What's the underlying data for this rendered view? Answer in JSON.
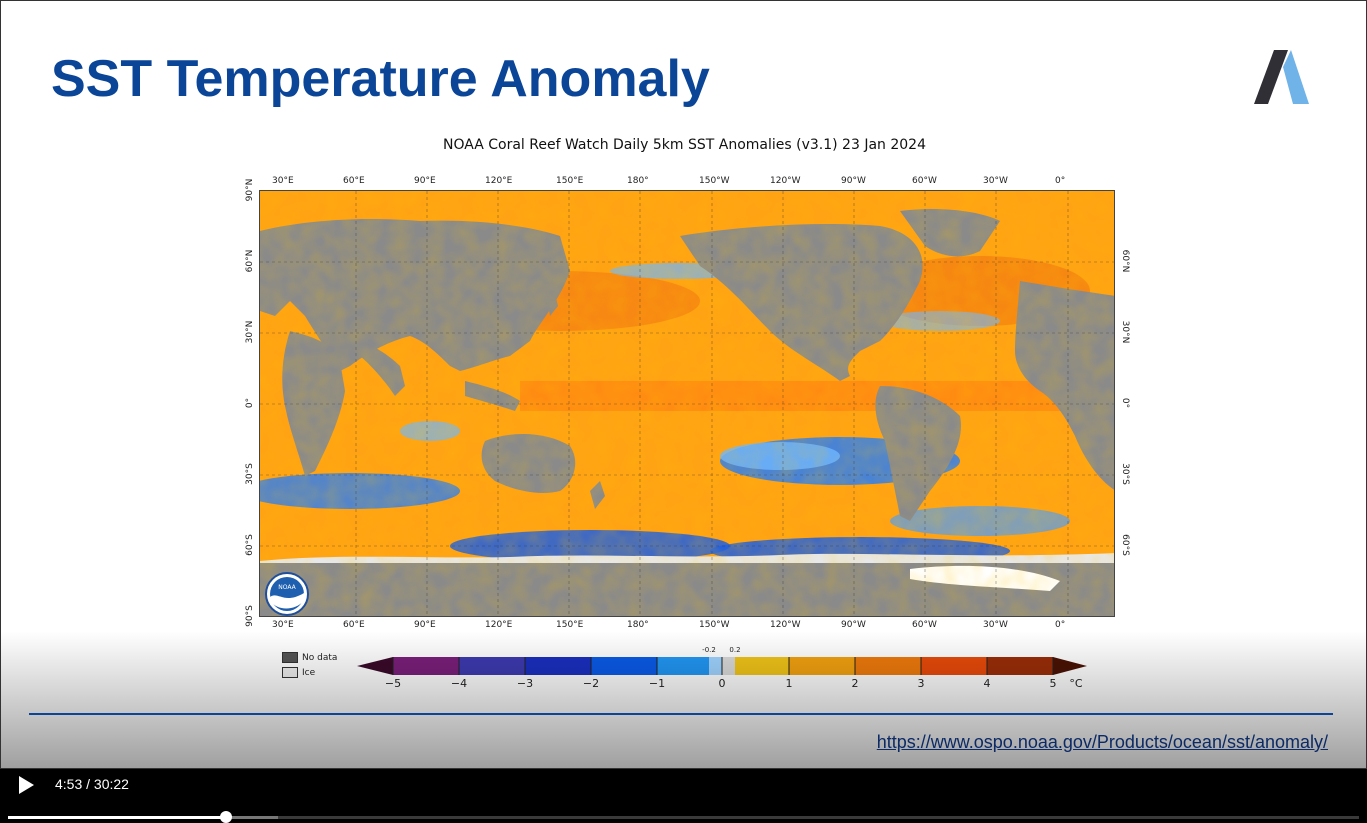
{
  "slide": {
    "title": "SST Temperature Anomaly",
    "source_url": "https://www.ospo.noaa.gov/Products/ocean/sst/anomaly/"
  },
  "figure": {
    "title": "NOAA Coral Reef Watch Daily 5km SST Anomalies  (v3.1)    23 Jan 2024",
    "lon_ticks": [
      "30°E",
      "60°E",
      "90°E",
      "120°E",
      "150°E",
      "180°",
      "150°W",
      "120°W",
      "90°W",
      "60°W",
      "30°W",
      "0°"
    ],
    "lat_ticks": [
      "90°N",
      "60°N",
      "30°N",
      "0°",
      "30°S",
      "60°S",
      "90°S"
    ],
    "lat_ticks_right": [
      "60°N",
      "30°N",
      "0°",
      "30°S",
      "60°S"
    ],
    "legend": {
      "no_data": "No data",
      "ice": "Ice"
    },
    "colorbar": {
      "ticks": [
        "−5",
        "−4",
        "−3",
        "−2",
        "−1",
        "0",
        "1",
        "2",
        "3",
        "4",
        "5"
      ],
      "small_ticks": [
        "-0.2",
        "0.2"
      ],
      "unit": "°C"
    },
    "logo_text": "NOAA"
  },
  "colors": {
    "title": "#0b4597",
    "land": "#8a8a8a",
    "ocean_warm": "#ffa214",
    "ocean_cold": "#2a7ef5",
    "ice": "#ffffff"
  },
  "player": {
    "current_time": "4:53",
    "duration": "30:22",
    "time_display": "4:53 / 30:22",
    "progress_fraction": 0.161,
    "buffered_fraction": 0.2
  }
}
